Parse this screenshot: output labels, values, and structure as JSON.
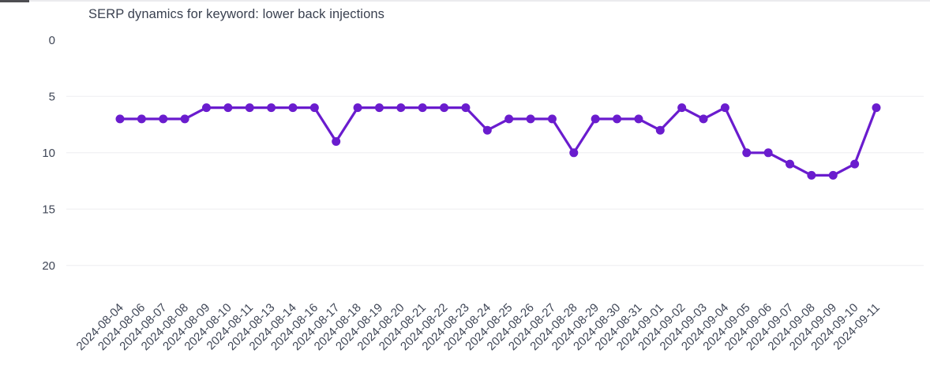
{
  "title": "SERP dynamics for keyword: lower back injections",
  "colors": {
    "line": "#6a1cce",
    "point": "#6a1cce",
    "grid": "#ededf0",
    "axis_text": "#3f4656",
    "title_text": "#3a4150",
    "background": "#ffffff",
    "scrollbar_thumb": "#4e4e52",
    "scrollbar_track": "#ebebee"
  },
  "chart_data": {
    "type": "line",
    "title": "SERP dynamics for keyword: lower back injections",
    "x": [
      "2024-08-04",
      "2024-08-06",
      "2024-08-07",
      "2024-08-08",
      "2024-08-09",
      "2024-08-10",
      "2024-08-11",
      "2024-08-13",
      "2024-08-14",
      "2024-08-16",
      "2024-08-17",
      "2024-08-18",
      "2024-08-19",
      "2024-08-20",
      "2024-08-21",
      "2024-08-22",
      "2024-08-23",
      "2024-08-24",
      "2024-08-25",
      "2024-08-26",
      "2024-08-27",
      "2024-08-28",
      "2024-08-29",
      "2024-08-30",
      "2024-08-31",
      "2024-09-01",
      "2024-09-02",
      "2024-09-03",
      "2024-09-04",
      "2024-09-05",
      "2024-09-06",
      "2024-09-07",
      "2024-09-08",
      "2024-09-09",
      "2024-09-10",
      "2024-09-11"
    ],
    "series": [
      {
        "name": "lower back injections",
        "values": [
          7,
          7,
          7,
          7,
          6,
          6,
          6,
          6,
          6,
          6,
          9,
          6,
          6,
          6,
          6,
          6,
          6,
          8,
          7,
          7,
          7,
          10,
          7,
          7,
          7,
          8,
          6,
          7,
          6,
          10,
          10,
          11,
          12,
          12,
          11,
          6
        ]
      }
    ],
    "xlabel": "",
    "ylabel": "",
    "y_ticks": [
      0,
      5,
      10,
      15,
      20
    ],
    "y_axis_inverted": true,
    "ylim": [
      0,
      20
    ],
    "grid": "horizontal",
    "gridline_at_zero": false,
    "legend": false,
    "x_label_rotation_deg": -45
  }
}
